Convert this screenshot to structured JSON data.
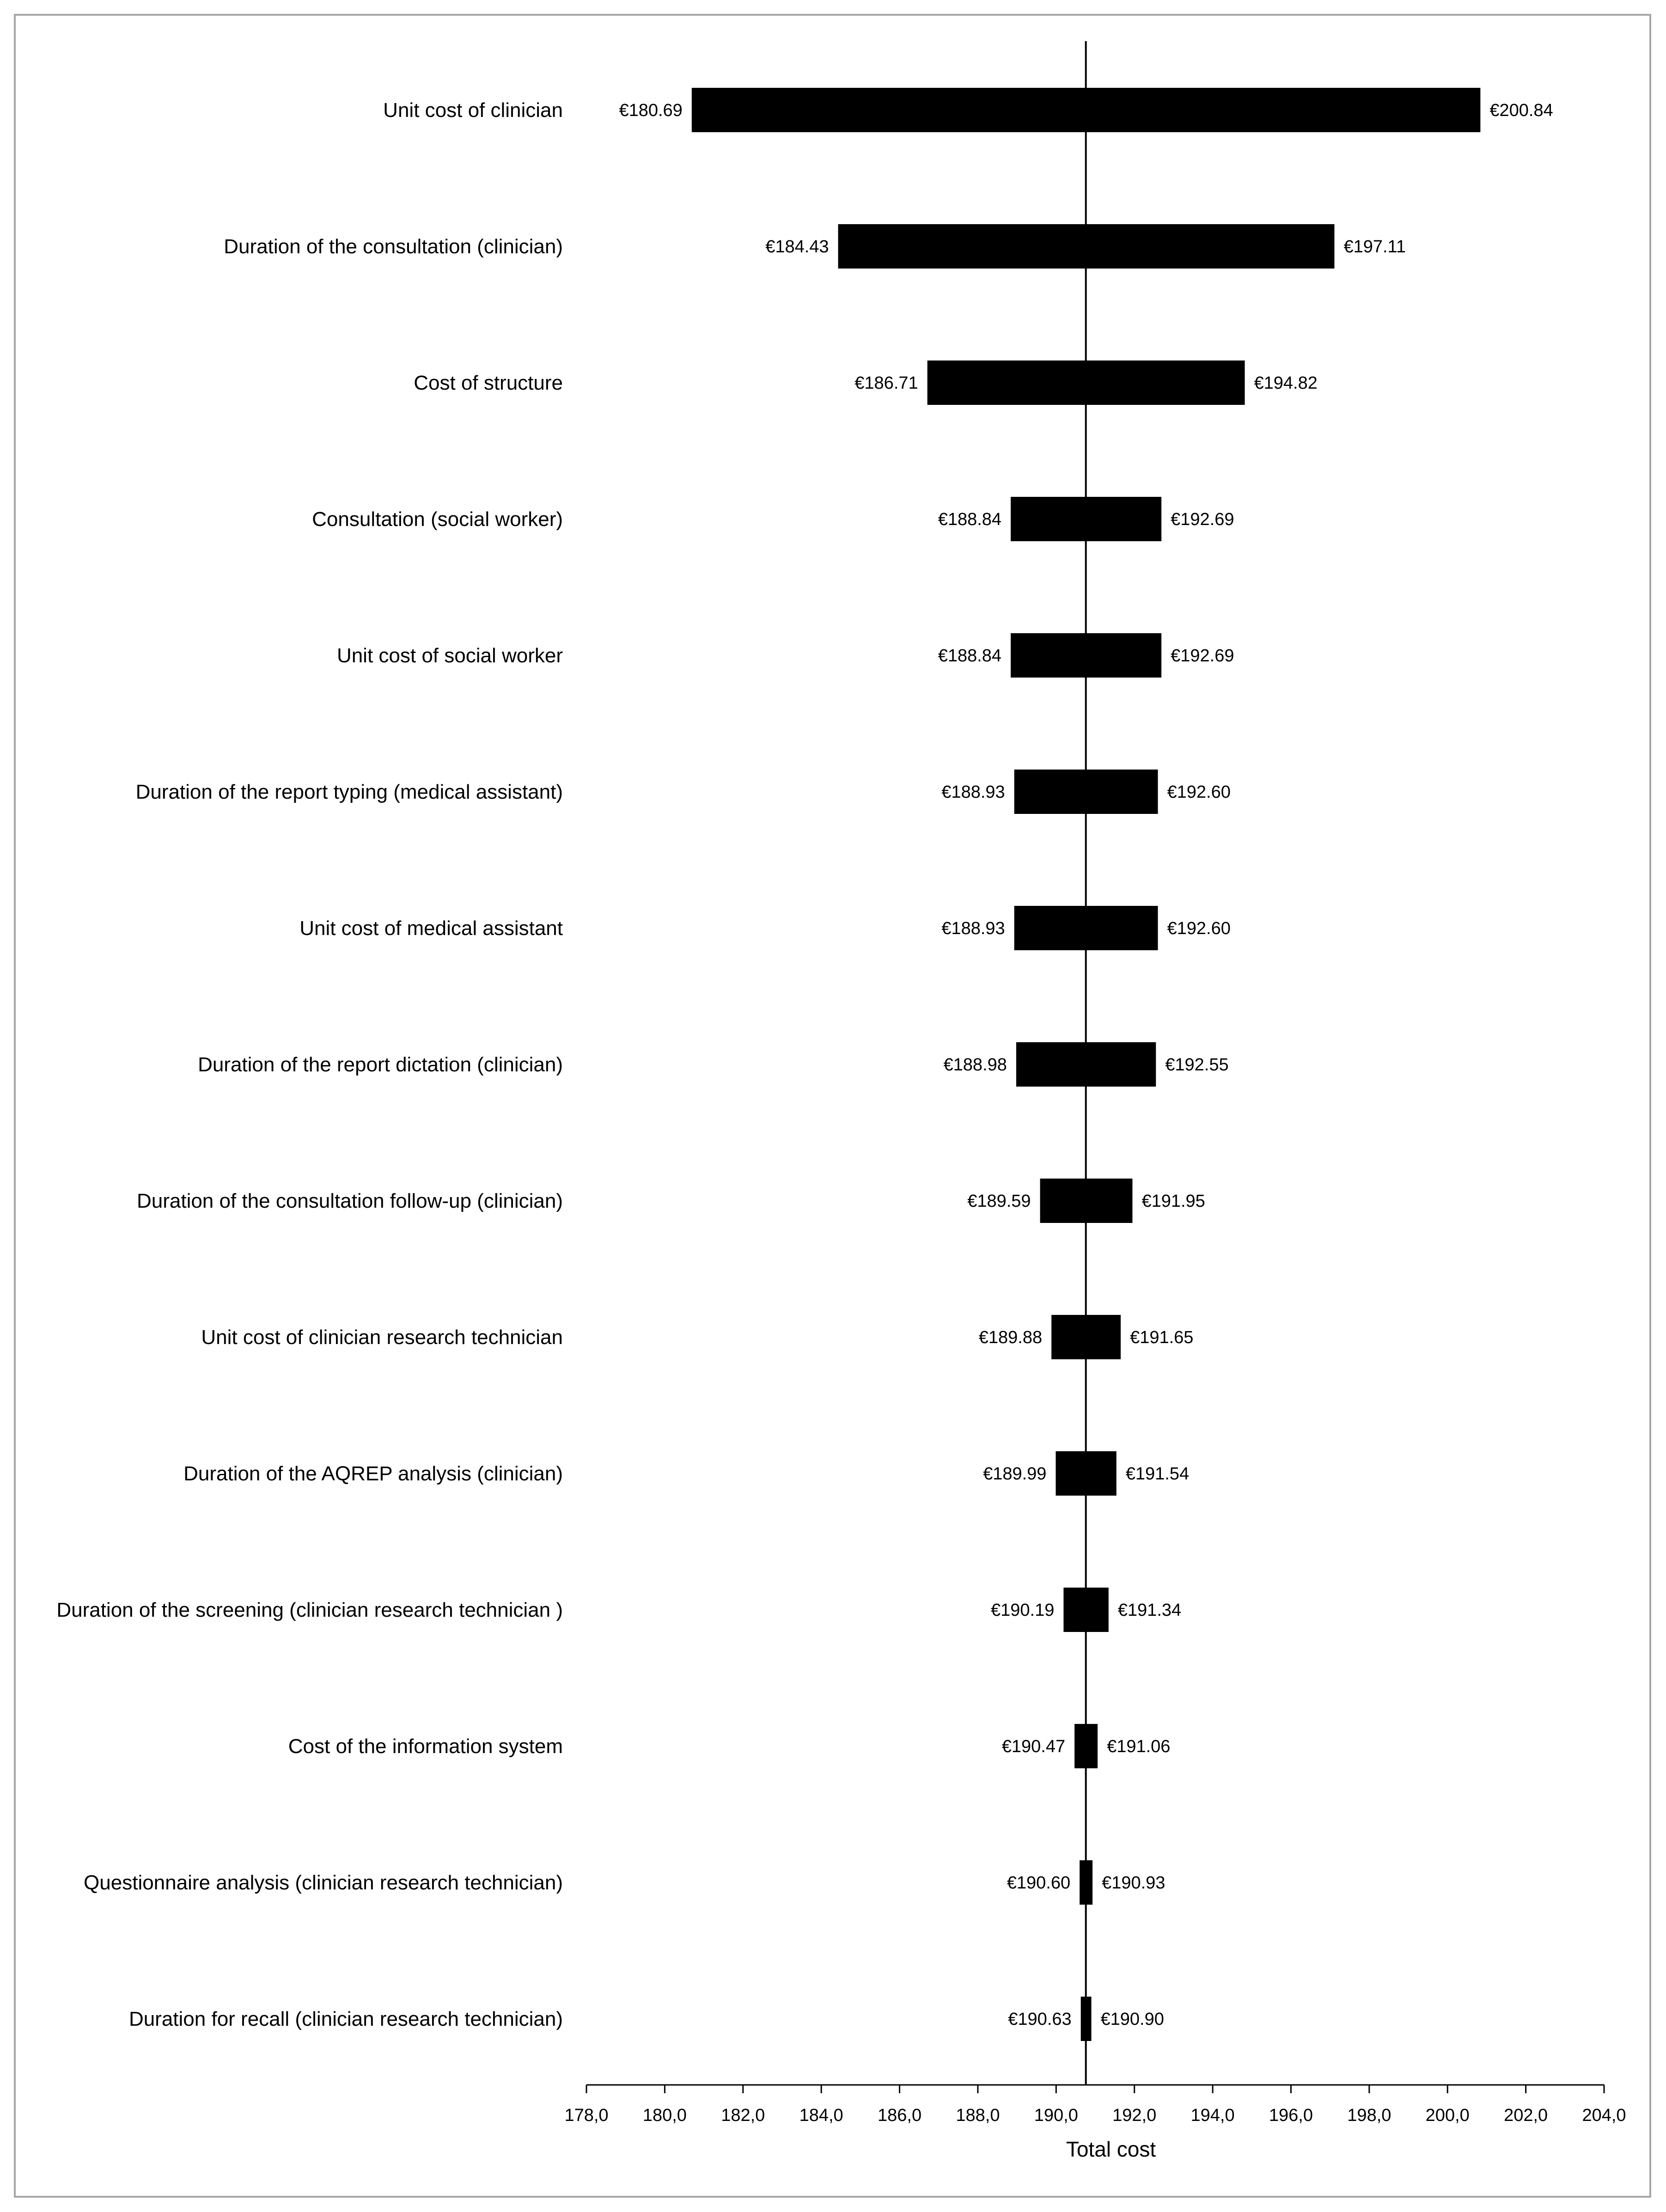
{
  "chart_data": {
    "type": "tornado",
    "xlabel": "Total cost",
    "xlim": [
      178.0,
      204.0
    ],
    "base_value": 190.76,
    "x_ticks": [
      "178,0",
      "180,0",
      "182,0",
      "184,0",
      "186,0",
      "188,0",
      "190,0",
      "192,0",
      "194,0",
      "196,0",
      "198,0",
      "200,0",
      "202,0",
      "204,0"
    ],
    "x_tick_values": [
      178,
      180,
      182,
      184,
      186,
      188,
      190,
      192,
      194,
      196,
      198,
      200,
      202,
      204
    ],
    "categories": [
      "Unit cost of clinician",
      "Duration of the consultation (clinician)",
      "Cost of structure",
      "Consultation (social worker)",
      "Unit cost of social worker",
      "Duration of the report typing (medical assistant)",
      "Unit cost of medical assistant",
      "Duration of the report dictation (clinician)",
      "Duration of the consultation follow-up (clinician)",
      "Unit cost of clinician research technician",
      "Duration of the AQREP analysis (clinician)",
      "Duration of the screening (clinician research technician )",
      "Cost of the information system",
      "Questionnaire analysis (clinician research technician)",
      "Duration for recall (clinician research technician)"
    ],
    "low_values": [
      180.69,
      184.43,
      186.71,
      188.84,
      188.84,
      188.93,
      188.93,
      188.98,
      189.59,
      189.88,
      189.99,
      190.19,
      190.47,
      190.6,
      190.63
    ],
    "high_values": [
      200.84,
      197.11,
      194.82,
      192.69,
      192.69,
      192.6,
      192.6,
      192.55,
      191.95,
      191.65,
      191.54,
      191.34,
      191.06,
      190.93,
      190.9
    ],
    "low_labels": [
      "€180.69",
      "€184.43",
      "€186.71",
      "€188.84",
      "€188.84",
      "€188.93",
      "€188.93",
      "€188.98",
      "€189.59",
      "€189.88",
      "€189.99",
      "€190.19",
      "€190.47",
      "€190.60",
      "€190.63"
    ],
    "high_labels": [
      "€200.84",
      "€197.11",
      "€194.82",
      "€192.69",
      "€192.69",
      "€192.60",
      "€192.60",
      "€192.55",
      "€191.95",
      "€191.65",
      "€191.54",
      "€191.34",
      "€191.06",
      "€190.93",
      "€190.90"
    ],
    "colors": {
      "bar": "#000000",
      "axis": "#000000",
      "frame": "#a6a6a6"
    },
    "grid": false,
    "legend": "none"
  }
}
